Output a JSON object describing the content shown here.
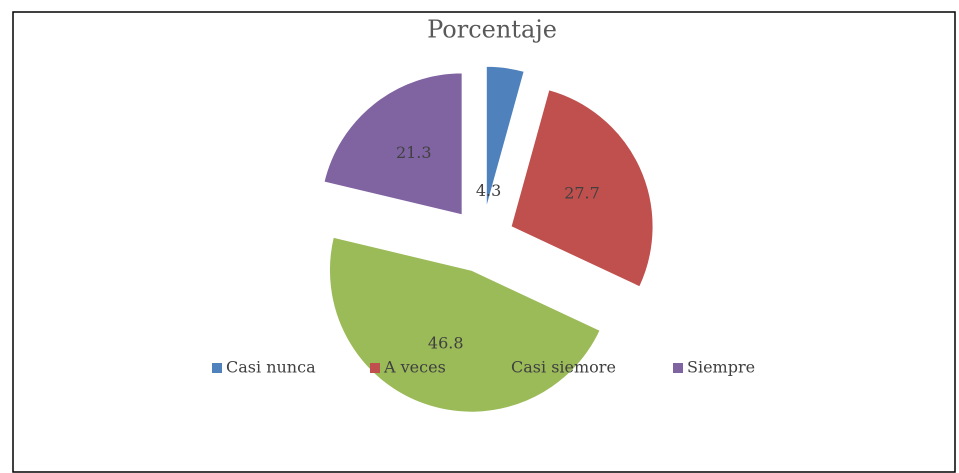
{
  "chart_data": {
    "type": "pie",
    "title": "Porcentaje",
    "categories": [
      "Casi nunca",
      "A veces",
      "Casi siemore",
      "Siempre"
    ],
    "values": [
      4.3,
      27.7,
      46.8,
      21.3
    ],
    "colors": [
      "#4f81bd",
      "#c0504d",
      "#9bbb59",
      "#8064a2"
    ],
    "legend": "bottom"
  }
}
